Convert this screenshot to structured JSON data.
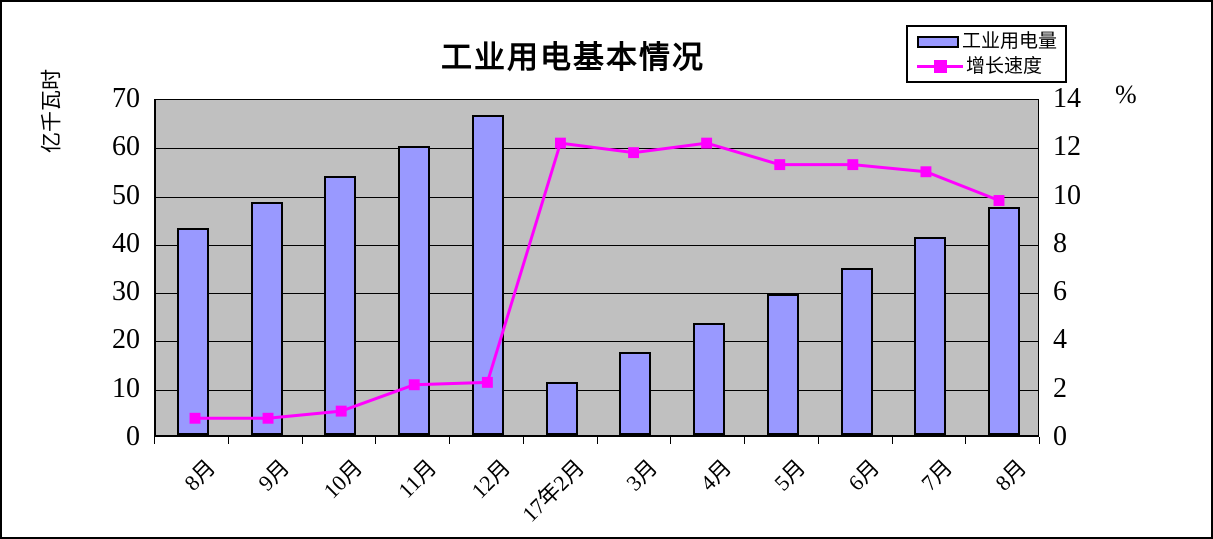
{
  "title": "工业用电基本情况",
  "left_axis": {
    "title": "亿千瓦时",
    "ticks": [
      "70",
      "60",
      "50",
      "40",
      "30",
      "20",
      "10",
      "0"
    ],
    "min": 0,
    "max": 70
  },
  "right_axis": {
    "unit": "%",
    "ticks": [
      "14",
      "12",
      "10",
      "8",
      "6",
      "4",
      "2",
      "0"
    ],
    "min": 0,
    "max": 14
  },
  "chart_data": {
    "type": "bar+line",
    "title": "工业用电基本情况",
    "categories": [
      "8月",
      "9月",
      "10月",
      "11月",
      "12月",
      "17年2月",
      "3月",
      "4月",
      "5月",
      "6月",
      "7月",
      "8月"
    ],
    "series": [
      {
        "name": "工业用电量",
        "type": "bar",
        "axis": "left",
        "unit": "亿千瓦时",
        "color": "#9999FF",
        "values": [
          42.8,
          48.3,
          53.7,
          59.8,
          66.3,
          11.0,
          17.1,
          23.2,
          29.1,
          34.5,
          41.0,
          47.3
        ]
      },
      {
        "name": "增长速度",
        "type": "line",
        "axis": "right",
        "unit": "%",
        "color": "#FF00FF",
        "values": [
          0.7,
          0.7,
          1.0,
          2.1,
          2.2,
          12.2,
          11.8,
          12.2,
          11.3,
          11.3,
          11.0,
          9.8
        ]
      }
    ],
    "ylim_left": [
      0,
      70
    ],
    "ylim_right": [
      0,
      14
    ],
    "grid": "horizontal",
    "legend_position": "top-right",
    "plot_bg": "#C0C0C0"
  },
  "colors": {
    "bar_fill": "#9999FF",
    "bar_border": "#000000",
    "line": "#FF00FF",
    "plot_bg": "#C0C0C0",
    "grid": "#000000",
    "chart_border": "#000000",
    "background": "#FFFFFF"
  }
}
